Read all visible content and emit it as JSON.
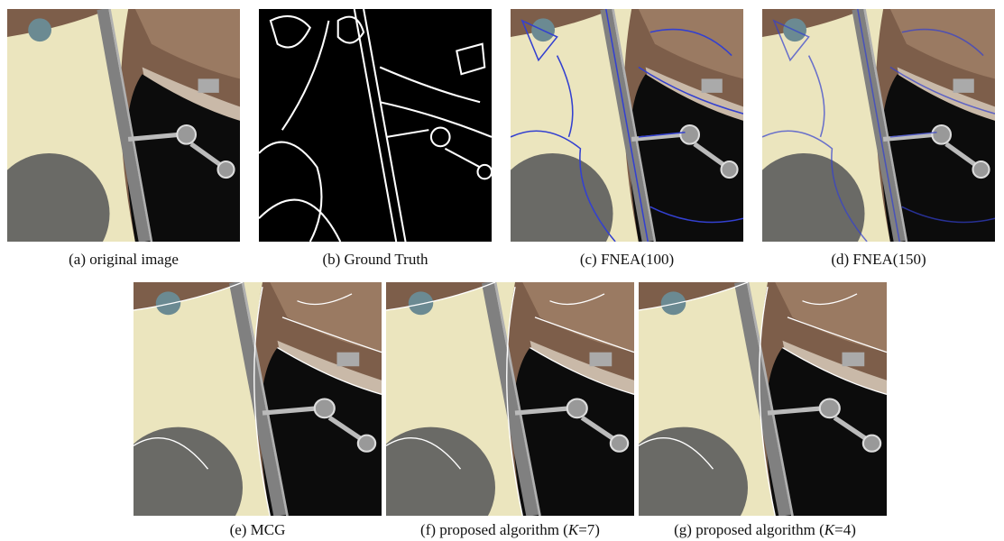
{
  "panels": [
    {
      "caption": {
        "text": "(a) original image"
      }
    },
    {
      "caption": {
        "text": "(b) Ground Truth"
      }
    },
    {
      "caption": {
        "text": "(c) FNEA(100)"
      }
    },
    {
      "caption": {
        "text": "(d) FNEA(150)"
      }
    },
    {
      "caption": {
        "text": "(e) MCG"
      }
    },
    {
      "caption": {
        "text": "(f) proposed algorithm (",
        "italic": "K",
        "suffix": "=7)"
      }
    },
    {
      "caption": {
        "text": "(g) proposed algorithm (",
        "italic": "K",
        "suffix": "=4)"
      }
    }
  ]
}
